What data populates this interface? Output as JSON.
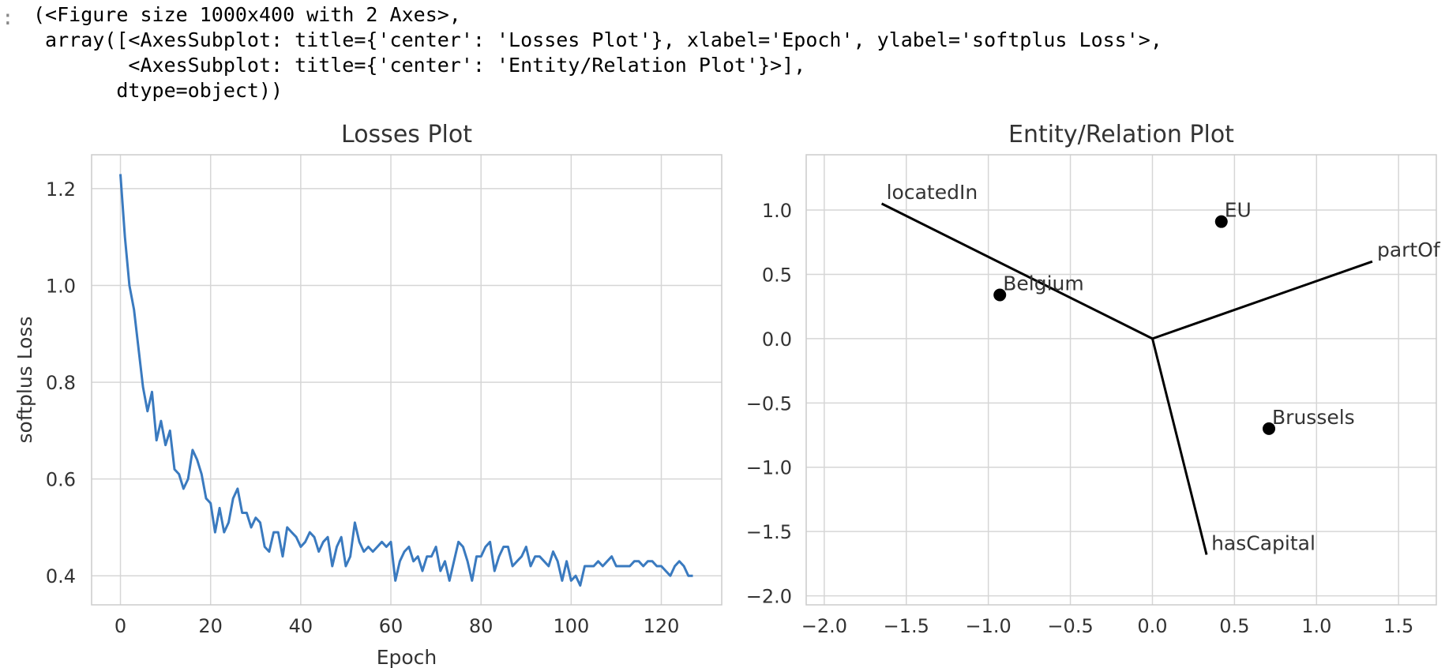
{
  "notebook_output": {
    "prompt": ":",
    "repr_lines": [
      "(<Figure size 1000x400 with 2 Axes>,",
      " array([<AxesSubplot: title={'center': 'Losses Plot'}, xlabel='Epoch', ylabel='softplus Loss'>,",
      "        <AxesSubplot: title={'center': 'Entity/Relation Plot'}>],",
      "       dtype=object))"
    ]
  },
  "chart_data": [
    {
      "type": "line",
      "title": "Losses Plot",
      "xlabel": "Epoch",
      "ylabel": "softplus Loss",
      "xlim": [
        -6.4,
        133.4
      ],
      "ylim": [
        0.34,
        1.27
      ],
      "xticks": [
        0,
        20,
        40,
        60,
        80,
        100,
        120
      ],
      "yticks": [
        0.4,
        0.6,
        0.8,
        1.0,
        1.2
      ],
      "ytick_labels": [
        "0.4",
        "0.6",
        "0.8",
        "1.0",
        "1.2"
      ],
      "grid": true,
      "line_color": "#3a7abf",
      "series": [
        {
          "name": "",
          "x_start": 0,
          "values": [
            1.23,
            1.1,
            1.0,
            0.95,
            0.87,
            0.79,
            0.74,
            0.78,
            0.68,
            0.72,
            0.67,
            0.7,
            0.62,
            0.61,
            0.58,
            0.6,
            0.66,
            0.64,
            0.61,
            0.56,
            0.55,
            0.49,
            0.54,
            0.49,
            0.51,
            0.56,
            0.58,
            0.53,
            0.53,
            0.5,
            0.52,
            0.51,
            0.46,
            0.45,
            0.49,
            0.49,
            0.44,
            0.5,
            0.49,
            0.48,
            0.46,
            0.47,
            0.49,
            0.48,
            0.45,
            0.47,
            0.48,
            0.42,
            0.46,
            0.48,
            0.42,
            0.44,
            0.51,
            0.47,
            0.45,
            0.46,
            0.45,
            0.46,
            0.47,
            0.46,
            0.47,
            0.39,
            0.43,
            0.45,
            0.46,
            0.43,
            0.44,
            0.41,
            0.44,
            0.44,
            0.46,
            0.41,
            0.43,
            0.39,
            0.43,
            0.47,
            0.46,
            0.43,
            0.39,
            0.44,
            0.44,
            0.46,
            0.47,
            0.41,
            0.44,
            0.46,
            0.46,
            0.42,
            0.43,
            0.44,
            0.46,
            0.42,
            0.44,
            0.44,
            0.43,
            0.42,
            0.45,
            0.43,
            0.39,
            0.43,
            0.39,
            0.4,
            0.38,
            0.42,
            0.42,
            0.42,
            0.43,
            0.42,
            0.43,
            0.44,
            0.42,
            0.42,
            0.42,
            0.42,
            0.43,
            0.43,
            0.42,
            0.43,
            0.43,
            0.42,
            0.42,
            0.41,
            0.4,
            0.42,
            0.43,
            0.42,
            0.4,
            0.4
          ]
        }
      ]
    },
    {
      "type": "scatter",
      "title": "Entity/Relation Plot",
      "xlabel": "",
      "ylabel": "",
      "xlim": [
        -2.11,
        1.73
      ],
      "ylim": [
        -2.07,
        1.43
      ],
      "xticks": [
        -2.0,
        -1.5,
        -1.0,
        -0.5,
        0.0,
        0.5,
        1.0,
        1.5
      ],
      "xtick_labels": [
        "−2.0",
        "−1.5",
        "−1.0",
        "−0.5",
        "0.0",
        "0.5",
        "1.0",
        "1.5"
      ],
      "yticks": [
        -2.0,
        -1.5,
        -1.0,
        -0.5,
        0.0,
        0.5,
        1.0
      ],
      "ytick_labels": [
        "−2.0",
        "−1.5",
        "−1.0",
        "−0.5",
        "0.0",
        "0.5",
        "1.0"
      ],
      "grid": true,
      "entities": [
        {
          "label": "EU",
          "x": 0.42,
          "y": 0.91
        },
        {
          "label": "Belgium",
          "x": -0.93,
          "y": 0.34
        },
        {
          "label": "Brussels",
          "x": 0.71,
          "y": -0.7
        }
      ],
      "relations": [
        {
          "label": "locatedIn",
          "x": -1.65,
          "y": 1.05
        },
        {
          "label": "partOf",
          "x": 1.34,
          "y": 0.6
        },
        {
          "label": "hasCapital",
          "x": 0.33,
          "y": -1.68
        }
      ]
    }
  ]
}
